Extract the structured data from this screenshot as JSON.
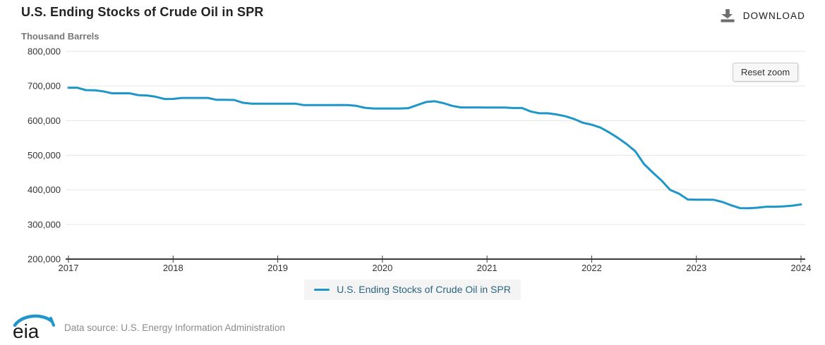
{
  "header": {
    "title": "U.S. Ending Stocks of Crude Oil in SPR",
    "download_label": "DOWNLOAD"
  },
  "chart": {
    "subtitle": "Thousand Barrels",
    "reset_zoom_label": "Reset zoom",
    "line_color": "#1e96c8",
    "grid_color": "#e6e6e6",
    "axis_color": "#3a3a3a",
    "label_color": "#333333"
  },
  "legend": {
    "label": "U.S. Ending Stocks of Crude Oil in SPR",
    "text_color": "#29637e"
  },
  "footer": {
    "logo_text": "eia",
    "logo_swoosh_color": "#2196cb",
    "data_source": "Data source: U.S. Energy Information Administration"
  },
  "chart_data": {
    "type": "line",
    "title": "U.S. Ending Stocks of Crude Oil in SPR",
    "ylabel": "Thousand Barrels",
    "unit": "thousand barrels",
    "frequency": "monthly",
    "xlim": [
      2017,
      2024
    ],
    "ylim": [
      200000,
      800000
    ],
    "x_ticks": [
      2017,
      2018,
      2019,
      2020,
      2021,
      2022,
      2023,
      2024
    ],
    "y_ticks": [
      200000,
      300000,
      400000,
      500000,
      600000,
      700000,
      800000
    ],
    "grid": "horizontal",
    "legend_position": "bottom",
    "series": [
      {
        "name": "U.S. Ending Stocks of Crude Oil in SPR",
        "start": "2017-01",
        "end": "2024-01",
        "values": [
          695100,
          695100,
          688100,
          687700,
          684500,
          678900,
          678900,
          678900,
          673700,
          672600,
          669100,
          662500,
          662700,
          665500,
          665500,
          665500,
          665500,
          660000,
          660000,
          659700,
          651700,
          649100,
          649100,
          649100,
          649100,
          649100,
          649100,
          644800,
          644800,
          644800,
          644800,
          645200,
          645000,
          642800,
          637000,
          635000,
          635000,
          635000,
          635000,
          636000,
          645000,
          653700,
          656100,
          650600,
          642800,
          638100,
          638100,
          638100,
          637800,
          637800,
          637800,
          636400,
          636400,
          626500,
          621300,
          621300,
          617800,
          612500,
          604500,
          593700,
          588200,
          580000,
          566100,
          550300,
          532300,
          511600,
          474500,
          450100,
          427200,
          399800,
          389100,
          372400,
          371600,
          371600,
          371200,
          364900,
          355400,
          347200,
          346800,
          348400,
          351300,
          351300,
          352300,
          354400,
          357800
        ]
      }
    ]
  }
}
